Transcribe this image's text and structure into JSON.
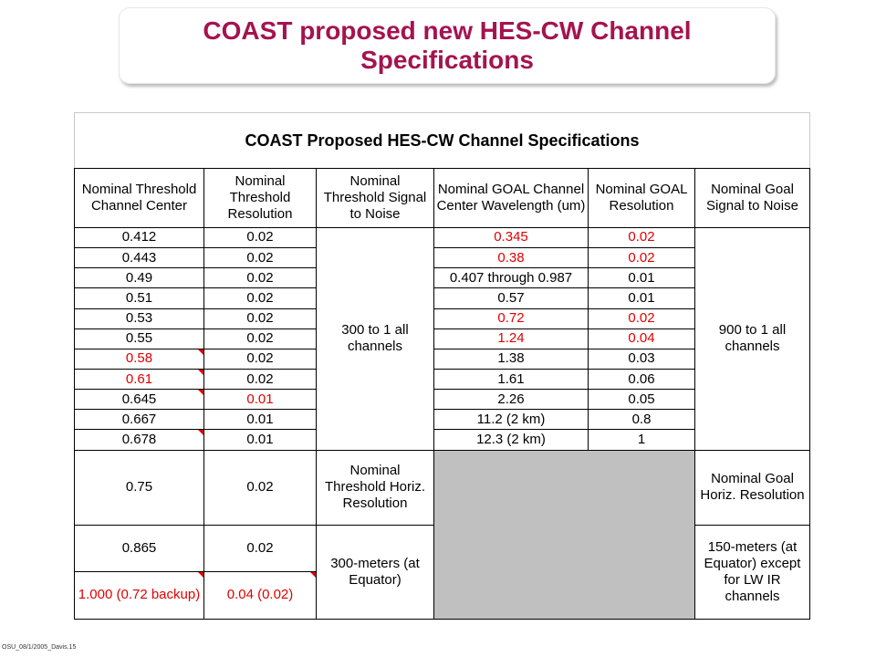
{
  "slide": {
    "title_line1": "COAST proposed new HES-CW Channel",
    "title_line2": "Specifications",
    "footer": "OSU_08/1/2005_Davis.15"
  },
  "table": {
    "caption": "COAST Proposed HES-CW Channel Specifications",
    "headers": [
      "Nominal Threshold Channel Center",
      "Nominal Threshold Resolution",
      "Nominal Threshold Signal to Noise",
      "Nominal GOAL Channel Center Wavelength (um)",
      "Nominal GOAL Resolution",
      "Nominal Goal Signal to Noise"
    ],
    "rows": [
      {
        "tc": "0.412",
        "tr": "0.02",
        "gc": "0.345",
        "gr": "0.02"
      },
      {
        "tc": "0.443",
        "tr": "0.02",
        "gc": "0.38",
        "gr": "0.02"
      },
      {
        "tc": "0.49",
        "tr": "0.02",
        "gc": "0.407 through 0.987",
        "gr": "0.01"
      },
      {
        "tc": "0.51",
        "tr": "0.02",
        "gc": "0.57",
        "gr": "0.01"
      },
      {
        "tc": "0.53",
        "tr": "0.02",
        "gc": "0.72",
        "gr": "0.02"
      },
      {
        "tc": "0.55",
        "tr": "0.02",
        "gc": "1.24",
        "gr": "0.04"
      },
      {
        "tc": "0.58",
        "tr": "0.02",
        "gc": "1.38",
        "gr": "0.03"
      },
      {
        "tc": "0.61",
        "tr": "0.02",
        "gc": "1.61",
        "gr": "0.06"
      },
      {
        "tc": "0.645",
        "tr": "0.01",
        "gc": "2.26",
        "gr": "0.05"
      },
      {
        "tc": "0.667",
        "tr": "0.01",
        "gc": "11.2 (2 km)",
        "gr": "0.8"
      },
      {
        "tc": "0.678",
        "tr": "0.01",
        "gc": "12.3 (2 km)",
        "gr": "1"
      }
    ],
    "threshold_snr": "300 to 1 all channels",
    "goal_snr": "900 to 1 all channels",
    "horiz_threshold_label": "Nominal Threshold Horiz. Resolution",
    "horiz_goal_label": "Nominal Goal Horiz. Resolution",
    "lower_rows": [
      {
        "tc": "0.75",
        "tr": "0.02"
      },
      {
        "tc": "0.865",
        "tr": "0.02"
      },
      {
        "tc": "1.000 (0.72 backup)",
        "tr": "0.04 (0.02)"
      }
    ],
    "horiz_threshold_value": "300-meters (at Equator)",
    "horiz_goal_value": "150-meters (at Equator) except for LW IR channels",
    "highlight_color": "#e00000",
    "title_color": "#a5134f",
    "gray_fill": "#c0c0c0"
  }
}
